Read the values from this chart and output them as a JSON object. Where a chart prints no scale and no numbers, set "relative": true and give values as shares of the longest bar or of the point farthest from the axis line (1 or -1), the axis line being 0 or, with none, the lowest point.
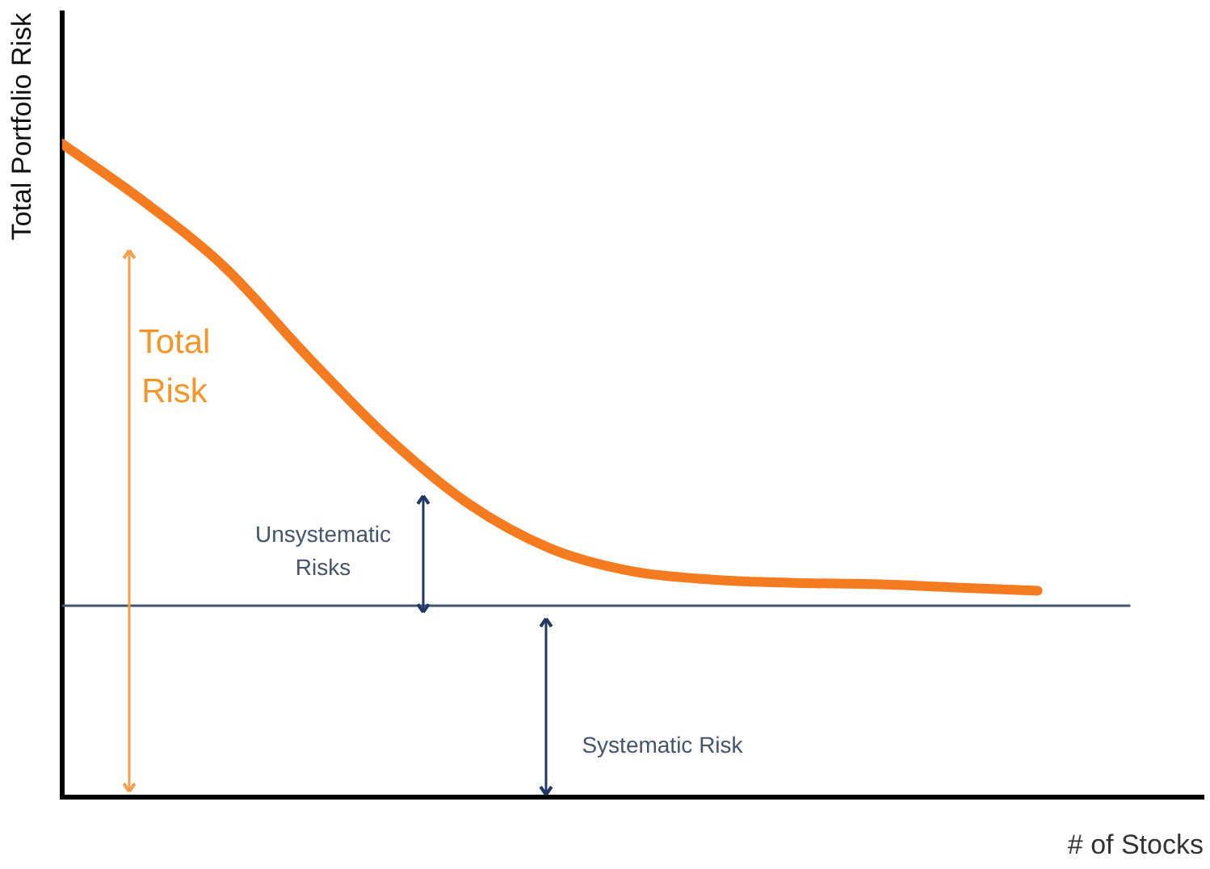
{
  "chart_data": {
    "type": "line",
    "relative": true,
    "xlabel": "# of Stocks",
    "ylabel": "Total Portfolio Risk",
    "categories": [
      null,
      null,
      null,
      null,
      null,
      null,
      null,
      null,
      null,
      null,
      null,
      null,
      null,
      null
    ],
    "series": [
      {
        "color": "#f47b20",
        "values": [
          1,
          0.912,
          0.811,
          0.677,
          0.551,
          0.449,
          0.381,
          0.346,
          0.333,
          0.328,
          0.326,
          0.321,
          0.316,
          null
        ]
      }
    ],
    "ref_lines": [
      {
        "axis": "y",
        "value": 0.293,
        "color": "#44546a",
        "line_style": "solid"
      }
    ],
    "annotations": [
      "Total Risk",
      "Unsystematic Risks",
      "Systematic Risk"
    ],
    "grid": false,
    "legend": false,
    "marker": "none",
    "line_style": "solid",
    "tick_labels": false
  }
}
